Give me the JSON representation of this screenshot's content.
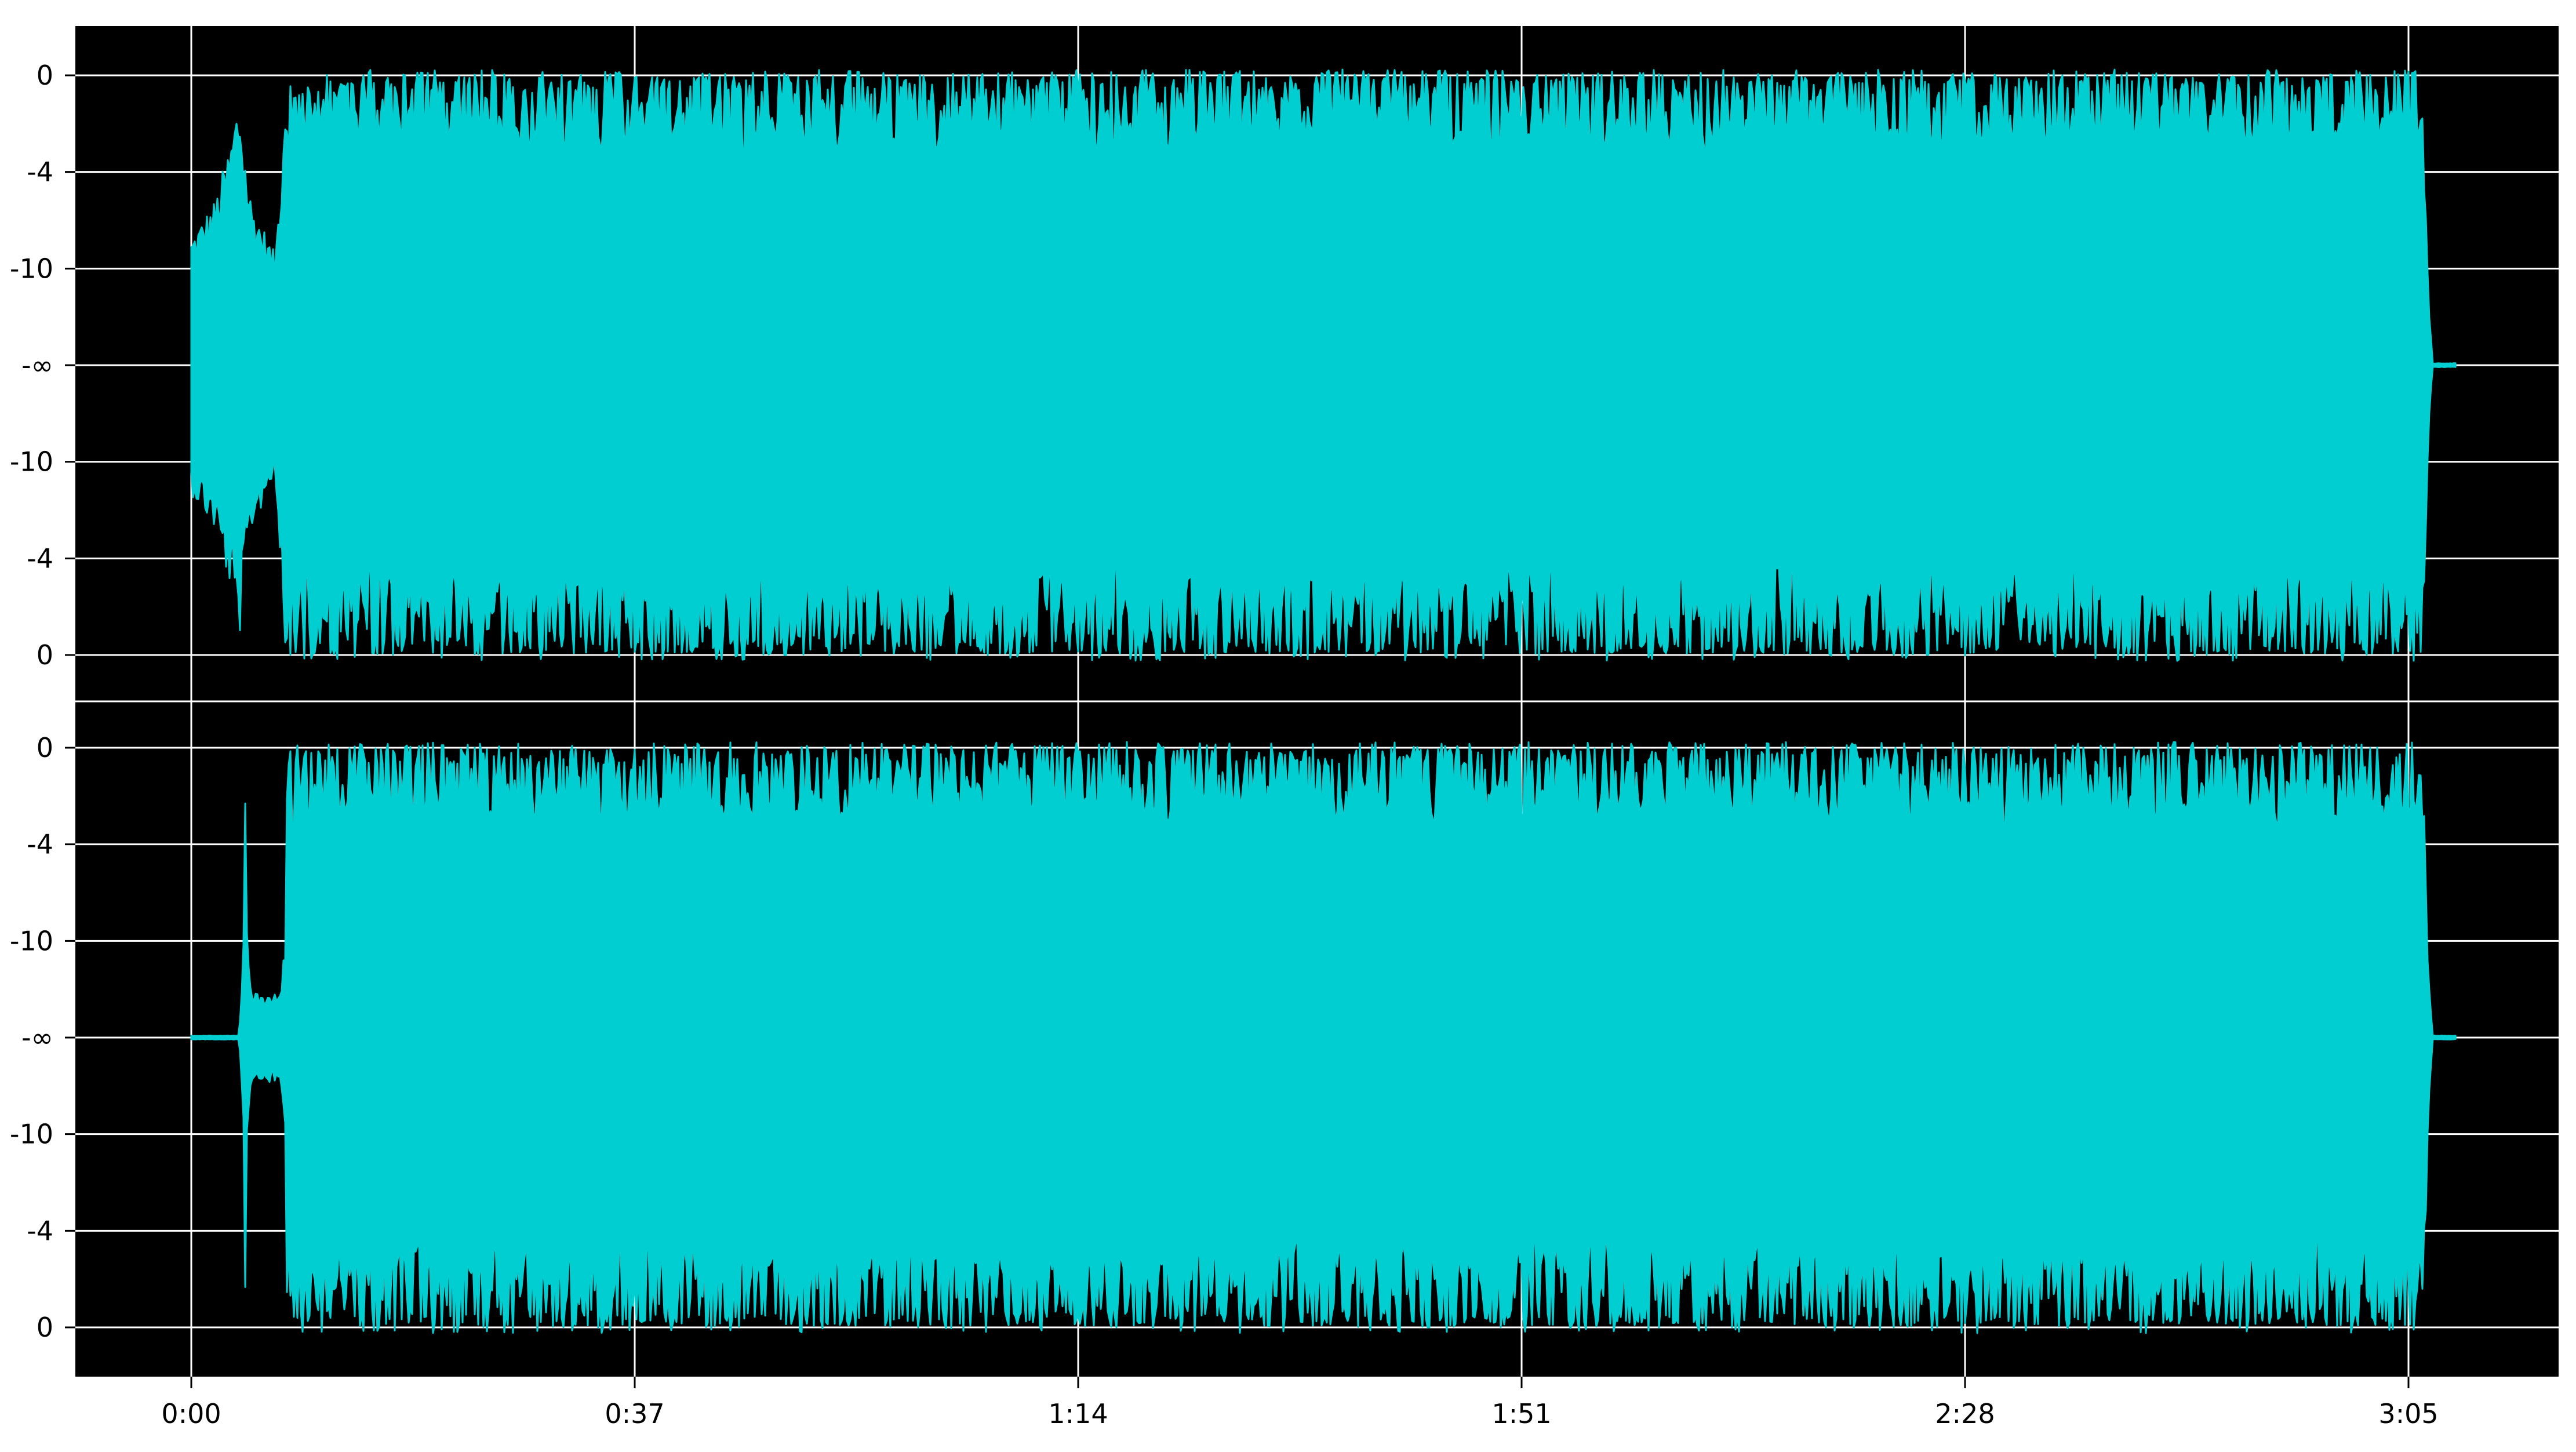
{
  "chart_data": {
    "type": "area",
    "title": "",
    "xlabel": "",
    "ylabel": "",
    "x_ticks": [
      "0:00",
      "0:37",
      "1:14",
      "1:51",
      "2:28",
      "3:05"
    ],
    "y_ticks": [
      "0",
      "-4",
      "-10",
      "-∞",
      "-10",
      "-4",
      "0"
    ],
    "y_scale": "decibel",
    "duration_seconds": 189,
    "grid": true,
    "legend": "none",
    "background_color": "#000000",
    "grid_color": "#ffffff",
    "series": [
      {
        "channel": 1,
        "color": "#00ced1",
        "envelope": [
          {
            "t": 0,
            "peak": -9
          },
          {
            "t": 2,
            "peak": -7
          },
          {
            "t": 4,
            "peak": -2
          },
          {
            "t": 5,
            "peak": -7
          },
          {
            "t": 7,
            "peak": -10
          },
          {
            "t": 8,
            "peak": 0
          },
          {
            "t": 20,
            "peak": 0
          },
          {
            "t": 40,
            "peak": 0
          },
          {
            "t": 60,
            "peak": 0
          },
          {
            "t": 80,
            "peak": 0
          },
          {
            "t": 100,
            "peak": 0
          },
          {
            "t": 120,
            "peak": 0
          },
          {
            "t": 140,
            "peak": 0
          },
          {
            "t": 160,
            "peak": 0
          },
          {
            "t": 180,
            "peak": 0
          },
          {
            "t": 186,
            "peak": 0
          },
          {
            "t": 186.5,
            "peak": -6
          },
          {
            "t": 187,
            "peak": -60
          },
          {
            "t": 189,
            "peak": -60
          }
        ]
      },
      {
        "channel": 2,
        "color": "#00ced1",
        "envelope": [
          {
            "t": 0,
            "peak": -60
          },
          {
            "t": 4,
            "peak": -60
          },
          {
            "t": 4.5,
            "peak": -1
          },
          {
            "t": 5,
            "peak": -40
          },
          {
            "t": 7.5,
            "peak": -40
          },
          {
            "t": 8,
            "peak": 0
          },
          {
            "t": 20,
            "peak": 0
          },
          {
            "t": 40,
            "peak": 0
          },
          {
            "t": 60,
            "peak": 0
          },
          {
            "t": 80,
            "peak": 0
          },
          {
            "t": 100,
            "peak": 0
          },
          {
            "t": 120,
            "peak": 0
          },
          {
            "t": 140,
            "peak": 0
          },
          {
            "t": 160,
            "peak": 0
          },
          {
            "t": 180,
            "peak": 0
          },
          {
            "t": 186,
            "peak": 0
          },
          {
            "t": 186.5,
            "peak": -6
          },
          {
            "t": 187,
            "peak": -60
          },
          {
            "t": 189,
            "peak": -60
          }
        ]
      }
    ]
  }
}
